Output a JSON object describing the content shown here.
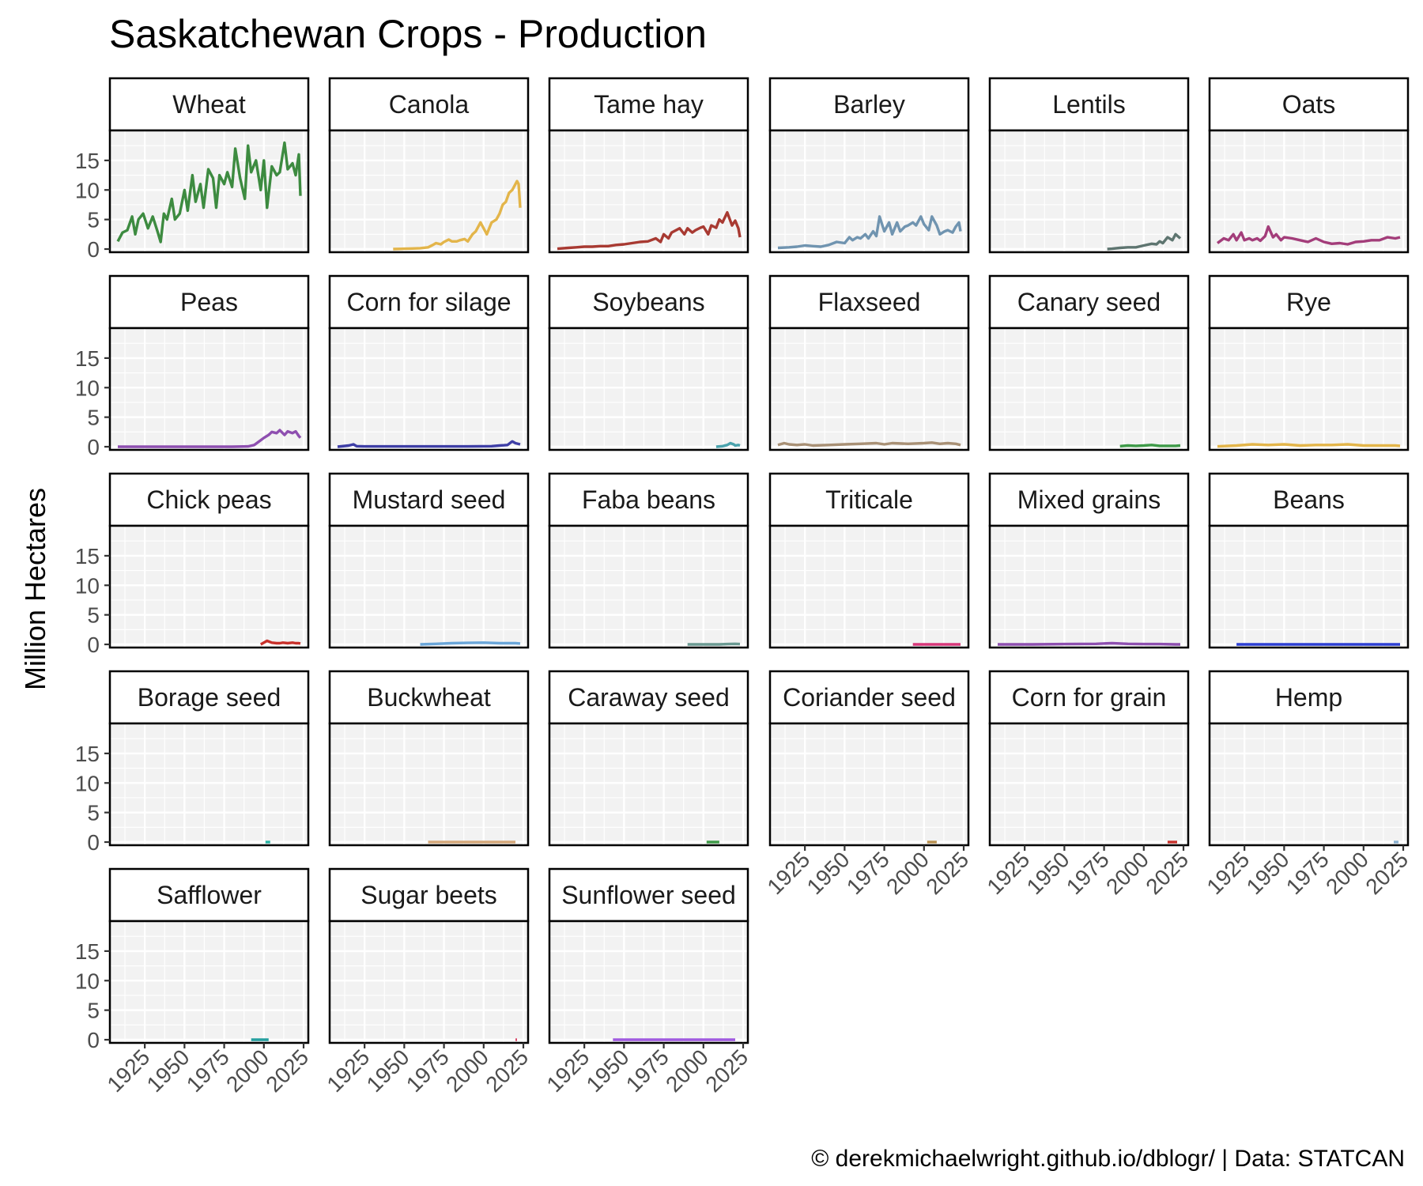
{
  "chart_data": {
    "type": "line",
    "title": "Saskatchewan Crops - Production",
    "ylabel": "Million Hectares",
    "xlabel": "",
    "caption": "© derekmichaelwright.github.io/dblogr/ | Data: STATCAN",
    "xlim": [
      1908,
      2023
    ],
    "ylim": [
      0,
      19
    ],
    "x_ticks": [
      1925,
      1950,
      1975,
      2000,
      2025
    ],
    "y_ticks": [
      0,
      5,
      10,
      15
    ],
    "facet_columns": 6,
    "grid": true,
    "panels": [
      {
        "name": "Wheat",
        "color": "#3d8b40",
        "x": [
          1908,
          1911,
          1914,
          1917,
          1919,
          1921,
          1924,
          1927,
          1930,
          1933,
          1935,
          1937,
          1939,
          1942,
          1944,
          1947,
          1950,
          1952,
          1955,
          1957,
          1960,
          1962,
          1965,
          1968,
          1970,
          1972,
          1975,
          1977,
          1980,
          1982,
          1985,
          1988,
          1990,
          1992,
          1995,
          1998,
          2000,
          2002,
          2005,
          2008,
          2010,
          2013,
          2015,
          2018,
          2020,
          2022,
          2023
        ],
        "y": [
          1.3,
          2.8,
          3.2,
          5.5,
          2.5,
          5.0,
          6.0,
          3.5,
          5.5,
          3.0,
          1.2,
          6.0,
          5.0,
          8.5,
          5.0,
          6.0,
          10.0,
          6.5,
          12.5,
          8.0,
          11.0,
          7.0,
          13.5,
          12.0,
          7.0,
          12.5,
          11.0,
          13.0,
          10.5,
          17.0,
          12.0,
          8.5,
          17.5,
          13.0,
          15.0,
          10.0,
          15.0,
          7.0,
          14.0,
          12.5,
          13.0,
          18.0,
          13.5,
          14.5,
          12.5,
          16.0,
          9.0
        ]
      },
      {
        "name": "Canola",
        "color": "#e3b54a",
        "x": [
          1943,
          1950,
          1955,
          1960,
          1965,
          1968,
          1970,
          1973,
          1975,
          1978,
          1980,
          1983,
          1985,
          1988,
          1990,
          1993,
          1995,
          1998,
          2000,
          2002,
          2005,
          2008,
          2010,
          2012,
          2014,
          2016,
          2018,
          2020,
          2021,
          2022,
          2023
        ],
        "y": [
          0.0,
          0.05,
          0.1,
          0.15,
          0.3,
          0.7,
          1.0,
          0.8,
          1.2,
          1.6,
          1.3,
          1.3,
          1.5,
          1.7,
          1.3,
          2.5,
          3.0,
          4.5,
          3.5,
          2.5,
          4.5,
          5.0,
          6.0,
          7.5,
          8.0,
          9.5,
          10.0,
          11.0,
          11.5,
          11.0,
          7.0
        ]
      },
      {
        "name": "Tame hay",
        "color": "#a83a32",
        "x": [
          1908,
          1915,
          1920,
          1925,
          1930,
          1935,
          1940,
          1945,
          1950,
          1955,
          1960,
          1965,
          1970,
          1973,
          1975,
          1978,
          1980,
          1985,
          1988,
          1990,
          1993,
          1995,
          1998,
          2000,
          2003,
          2005,
          2008,
          2010,
          2012,
          2015,
          2018,
          2020,
          2022,
          2023
        ],
        "y": [
          0.05,
          0.2,
          0.3,
          0.4,
          0.4,
          0.5,
          0.5,
          0.7,
          0.8,
          1.0,
          1.2,
          1.3,
          1.8,
          1.2,
          2.5,
          1.8,
          2.8,
          3.5,
          2.5,
          3.5,
          2.8,
          3.2,
          3.6,
          3.8,
          2.5,
          4.0,
          3.6,
          5.0,
          4.5,
          6.2,
          4.0,
          4.8,
          3.5,
          2.0
        ]
      },
      {
        "name": "Barley",
        "color": "#7094b0",
        "x": [
          1908,
          1915,
          1920,
          1925,
          1930,
          1935,
          1940,
          1945,
          1950,
          1953,
          1955,
          1958,
          1960,
          1963,
          1965,
          1968,
          1970,
          1972,
          1975,
          1978,
          1980,
          1983,
          1985,
          1988,
          1990,
          1993,
          1995,
          1998,
          2000,
          2003,
          2005,
          2008,
          2010,
          2013,
          2015,
          2018,
          2020,
          2022,
          2023
        ],
        "y": [
          0.2,
          0.3,
          0.4,
          0.6,
          0.5,
          0.4,
          0.7,
          1.2,
          1.0,
          2.0,
          1.5,
          2.0,
          1.8,
          2.5,
          1.8,
          3.0,
          2.2,
          5.5,
          3.0,
          4.5,
          2.5,
          4.5,
          3.0,
          3.8,
          4.0,
          4.5,
          4.0,
          5.5,
          4.2,
          3.2,
          5.5,
          4.0,
          2.5,
          3.0,
          3.2,
          2.8,
          3.8,
          4.5,
          3.0
        ]
      },
      {
        "name": "Lentils",
        "color": "#5e7570",
        "x": [
          1977,
          1980,
          1985,
          1990,
          1995,
          2000,
          2005,
          2008,
          2010,
          2012,
          2015,
          2018,
          2020,
          2023
        ],
        "y": [
          0.0,
          0.05,
          0.2,
          0.3,
          0.3,
          0.6,
          0.9,
          0.8,
          1.3,
          1.0,
          2.0,
          1.5,
          2.5,
          1.8
        ]
      },
      {
        "name": "Oats",
        "color": "#a33d7a",
        "x": [
          1908,
          1912,
          1915,
          1918,
          1920,
          1923,
          1925,
          1928,
          1930,
          1933,
          1935,
          1938,
          1940,
          1943,
          1945,
          1948,
          1950,
          1955,
          1960,
          1965,
          1970,
          1975,
          1980,
          1985,
          1990,
          1995,
          2000,
          2005,
          2010,
          2015,
          2020,
          2023
        ],
        "y": [
          1.0,
          1.8,
          1.5,
          2.5,
          1.5,
          2.8,
          1.5,
          1.8,
          1.5,
          1.8,
          1.4,
          2.2,
          3.8,
          2.0,
          2.5,
          1.5,
          2.0,
          1.8,
          1.5,
          1.2,
          1.8,
          1.2,
          0.9,
          1.0,
          0.8,
          1.2,
          1.3,
          1.5,
          1.5,
          2.0,
          1.8,
          2.0
        ]
      },
      {
        "name": "Peas",
        "color": "#8e4fb0",
        "x": [
          1908,
          1930,
          1960,
          1980,
          1990,
          1994,
          1997,
          2000,
          2003,
          2005,
          2008,
          2010,
          2013,
          2015,
          2018,
          2020,
          2022,
          2023
        ],
        "y": [
          0.0,
          0.0,
          0.0,
          0.0,
          0.05,
          0.3,
          0.9,
          1.5,
          2.0,
          2.5,
          2.3,
          2.8,
          2.0,
          2.6,
          2.3,
          2.6,
          1.8,
          1.5
        ]
      },
      {
        "name": "Corn for silage",
        "color": "#3f3fa6",
        "x": [
          1908,
          1915,
          1918,
          1920,
          1925,
          1930,
          1960,
          1990,
          2005,
          2010,
          2015,
          2017,
          2018,
          2020,
          2023
        ],
        "y": [
          0.0,
          0.2,
          0.4,
          0.1,
          0.05,
          0.05,
          0.05,
          0.05,
          0.1,
          0.2,
          0.3,
          0.7,
          0.9,
          0.6,
          0.4
        ]
      },
      {
        "name": "Soybeans",
        "color": "#4aa3ad",
        "x": [
          2008,
          2012,
          2015,
          2017,
          2019,
          2020,
          2022,
          2023
        ],
        "y": [
          0.0,
          0.1,
          0.3,
          0.6,
          0.4,
          0.2,
          0.3,
          0.2
        ]
      },
      {
        "name": "Flaxseed",
        "color": "#a89075",
        "x": [
          1908,
          1912,
          1915,
          1920,
          1925,
          1930,
          1940,
          1950,
          1960,
          1970,
          1975,
          1980,
          1990,
          2000,
          2005,
          2010,
          2015,
          2020,
          2023
        ],
        "y": [
          0.3,
          0.6,
          0.4,
          0.3,
          0.4,
          0.2,
          0.3,
          0.4,
          0.5,
          0.6,
          0.4,
          0.6,
          0.5,
          0.6,
          0.7,
          0.5,
          0.6,
          0.5,
          0.3
        ]
      },
      {
        "name": "Canary seed",
        "color": "#3e9a48",
        "x": [
          1985,
          1990,
          1995,
          2000,
          2005,
          2010,
          2015,
          2020,
          2023
        ],
        "y": [
          0.1,
          0.2,
          0.15,
          0.2,
          0.3,
          0.15,
          0.15,
          0.15,
          0.2
        ]
      },
      {
        "name": "Rye",
        "color": "#e3b54a",
        "x": [
          1908,
          1920,
          1930,
          1940,
          1950,
          1960,
          1970,
          1980,
          1990,
          2000,
          2010,
          2020,
          2023
        ],
        "y": [
          0.05,
          0.2,
          0.4,
          0.3,
          0.4,
          0.2,
          0.3,
          0.3,
          0.4,
          0.2,
          0.2,
          0.2,
          0.15
        ]
      },
      {
        "name": "Chick peas",
        "color": "#c8312b",
        "x": [
          1998,
          2000,
          2002,
          2005,
          2008,
          2010,
          2012,
          2015,
          2018,
          2020,
          2022,
          2023
        ],
        "y": [
          0.0,
          0.3,
          0.6,
          0.3,
          0.2,
          0.2,
          0.3,
          0.2,
          0.3,
          0.2,
          0.2,
          0.15
        ]
      },
      {
        "name": "Mustard seed",
        "color": "#6aa6d9",
        "x": [
          1960,
          1970,
          1980,
          1990,
          2000,
          2010,
          2020,
          2023
        ],
        "y": [
          0.0,
          0.1,
          0.2,
          0.25,
          0.3,
          0.2,
          0.2,
          0.15
        ]
      },
      {
        "name": "Faba beans",
        "color": "#6a9a92",
        "x": [
          1990,
          2000,
          2010,
          2015,
          2020,
          2023
        ],
        "y": [
          0.0,
          0.0,
          0.0,
          0.05,
          0.1,
          0.05
        ]
      },
      {
        "name": "Triticale",
        "color": "#d8377a",
        "x": [
          1993,
          2000,
          2010,
          2020,
          2023
        ],
        "y": [
          0.0,
          0.0,
          0.0,
          0.0,
          0.0
        ]
      },
      {
        "name": "Mixed grains",
        "color": "#8e4fb0",
        "x": [
          1908,
          1930,
          1950,
          1970,
          1980,
          1990,
          2000,
          2010,
          2020,
          2023
        ],
        "y": [
          0.0,
          0.0,
          0.05,
          0.1,
          0.2,
          0.1,
          0.05,
          0.05,
          0.0,
          0.0
        ]
      },
      {
        "name": "Beans",
        "color": "#2d3fd4",
        "x": [
          1920,
          1950,
          1980,
          2010,
          2023
        ],
        "y": [
          0.0,
          0.0,
          0.0,
          0.0,
          0.0
        ]
      },
      {
        "name": "Borage seed",
        "color": "#26b4a4",
        "x": [
          2001,
          2004
        ],
        "y": [
          0.0,
          0.0
        ]
      },
      {
        "name": "Buckwheat",
        "color": "#d4a87a",
        "x": [
          1965,
          1990,
          2010,
          2020
        ],
        "y": [
          0.0,
          0.0,
          0.0,
          0.0
        ]
      },
      {
        "name": "Caraway seed",
        "color": "#3e9a48",
        "x": [
          2002,
          2010
        ],
        "y": [
          0.0,
          0.0
        ]
      },
      {
        "name": "Coriander seed",
        "color": "#b89050",
        "x": [
          2002,
          2008
        ],
        "y": [
          0.0,
          0.0
        ]
      },
      {
        "name": "Corn for grain",
        "color": "#c8312b",
        "x": [
          2015,
          2021
        ],
        "y": [
          0.0,
          0.0
        ]
      },
      {
        "name": "Hemp",
        "color": "#8ab0d0",
        "x": [
          2019,
          2022
        ],
        "y": [
          0.0,
          0.0
        ]
      },
      {
        "name": "Safflower",
        "color": "#26a0a0",
        "x": [
          1992,
          2003
        ],
        "y": [
          0.0,
          0.0
        ]
      },
      {
        "name": "Sugar beets",
        "color": "#d84a6a",
        "x": [
          2020,
          2021
        ],
        "y": [
          0.0,
          0.0
        ]
      },
      {
        "name": "Sunflower seed",
        "color": "#a05ae0",
        "x": [
          1943,
          1960,
          1980,
          2000,
          2020
        ],
        "y": [
          0.0,
          0.0,
          0.0,
          0.0,
          0.0
        ]
      }
    ]
  }
}
